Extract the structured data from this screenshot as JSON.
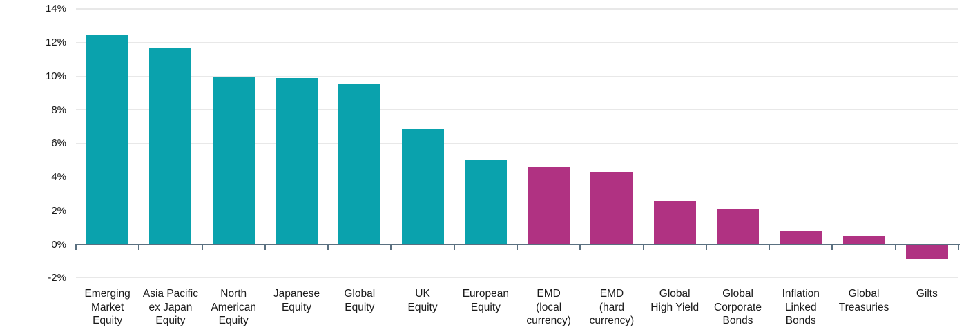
{
  "chart_data": {
    "type": "bar",
    "categories": [
      "Emerging\nMarket\nEquity",
      "Asia Pacific\nex Japan\nEquity",
      "North\nAmerican\nEquity",
      "Japanese\nEquity",
      "Global\nEquity",
      "UK\nEquity",
      "European\nEquity",
      "EMD\n(local\ncurrency)",
      "EMD\n(hard\ncurrency)",
      "Global\nHigh Yield",
      "Global\nCorporate\nBonds",
      "Inflation\nLinked\nBonds",
      "Global\nTreasuries",
      "Gilts"
    ],
    "values": [
      12.5,
      11.65,
      9.95,
      9.9,
      9.55,
      6.85,
      5.0,
      4.6,
      4.3,
      2.6,
      2.1,
      0.8,
      0.5,
      -0.8
    ],
    "unit": "%",
    "bar_groups": [
      "equity",
      "equity",
      "equity",
      "equity",
      "equity",
      "equity",
      "equity",
      "fixed_income",
      "fixed_income",
      "fixed_income",
      "fixed_income",
      "fixed_income",
      "fixed_income",
      "fixed_income"
    ],
    "colors": {
      "equity": "#0aa2ad",
      "fixed_income": "#b03282",
      "axis": "#5a7080",
      "gridline": "#e8e8e8",
      "text": "#1a1a1a"
    },
    "y_ticks": [
      "14%",
      "12%",
      "10%",
      "8%",
      "6%",
      "4%",
      "2%",
      "0%",
      "-2%"
    ],
    "ylim": [
      -2,
      14
    ],
    "grid": "horizontal",
    "legend": "none",
    "xlabel": "",
    "ylabel": ""
  }
}
